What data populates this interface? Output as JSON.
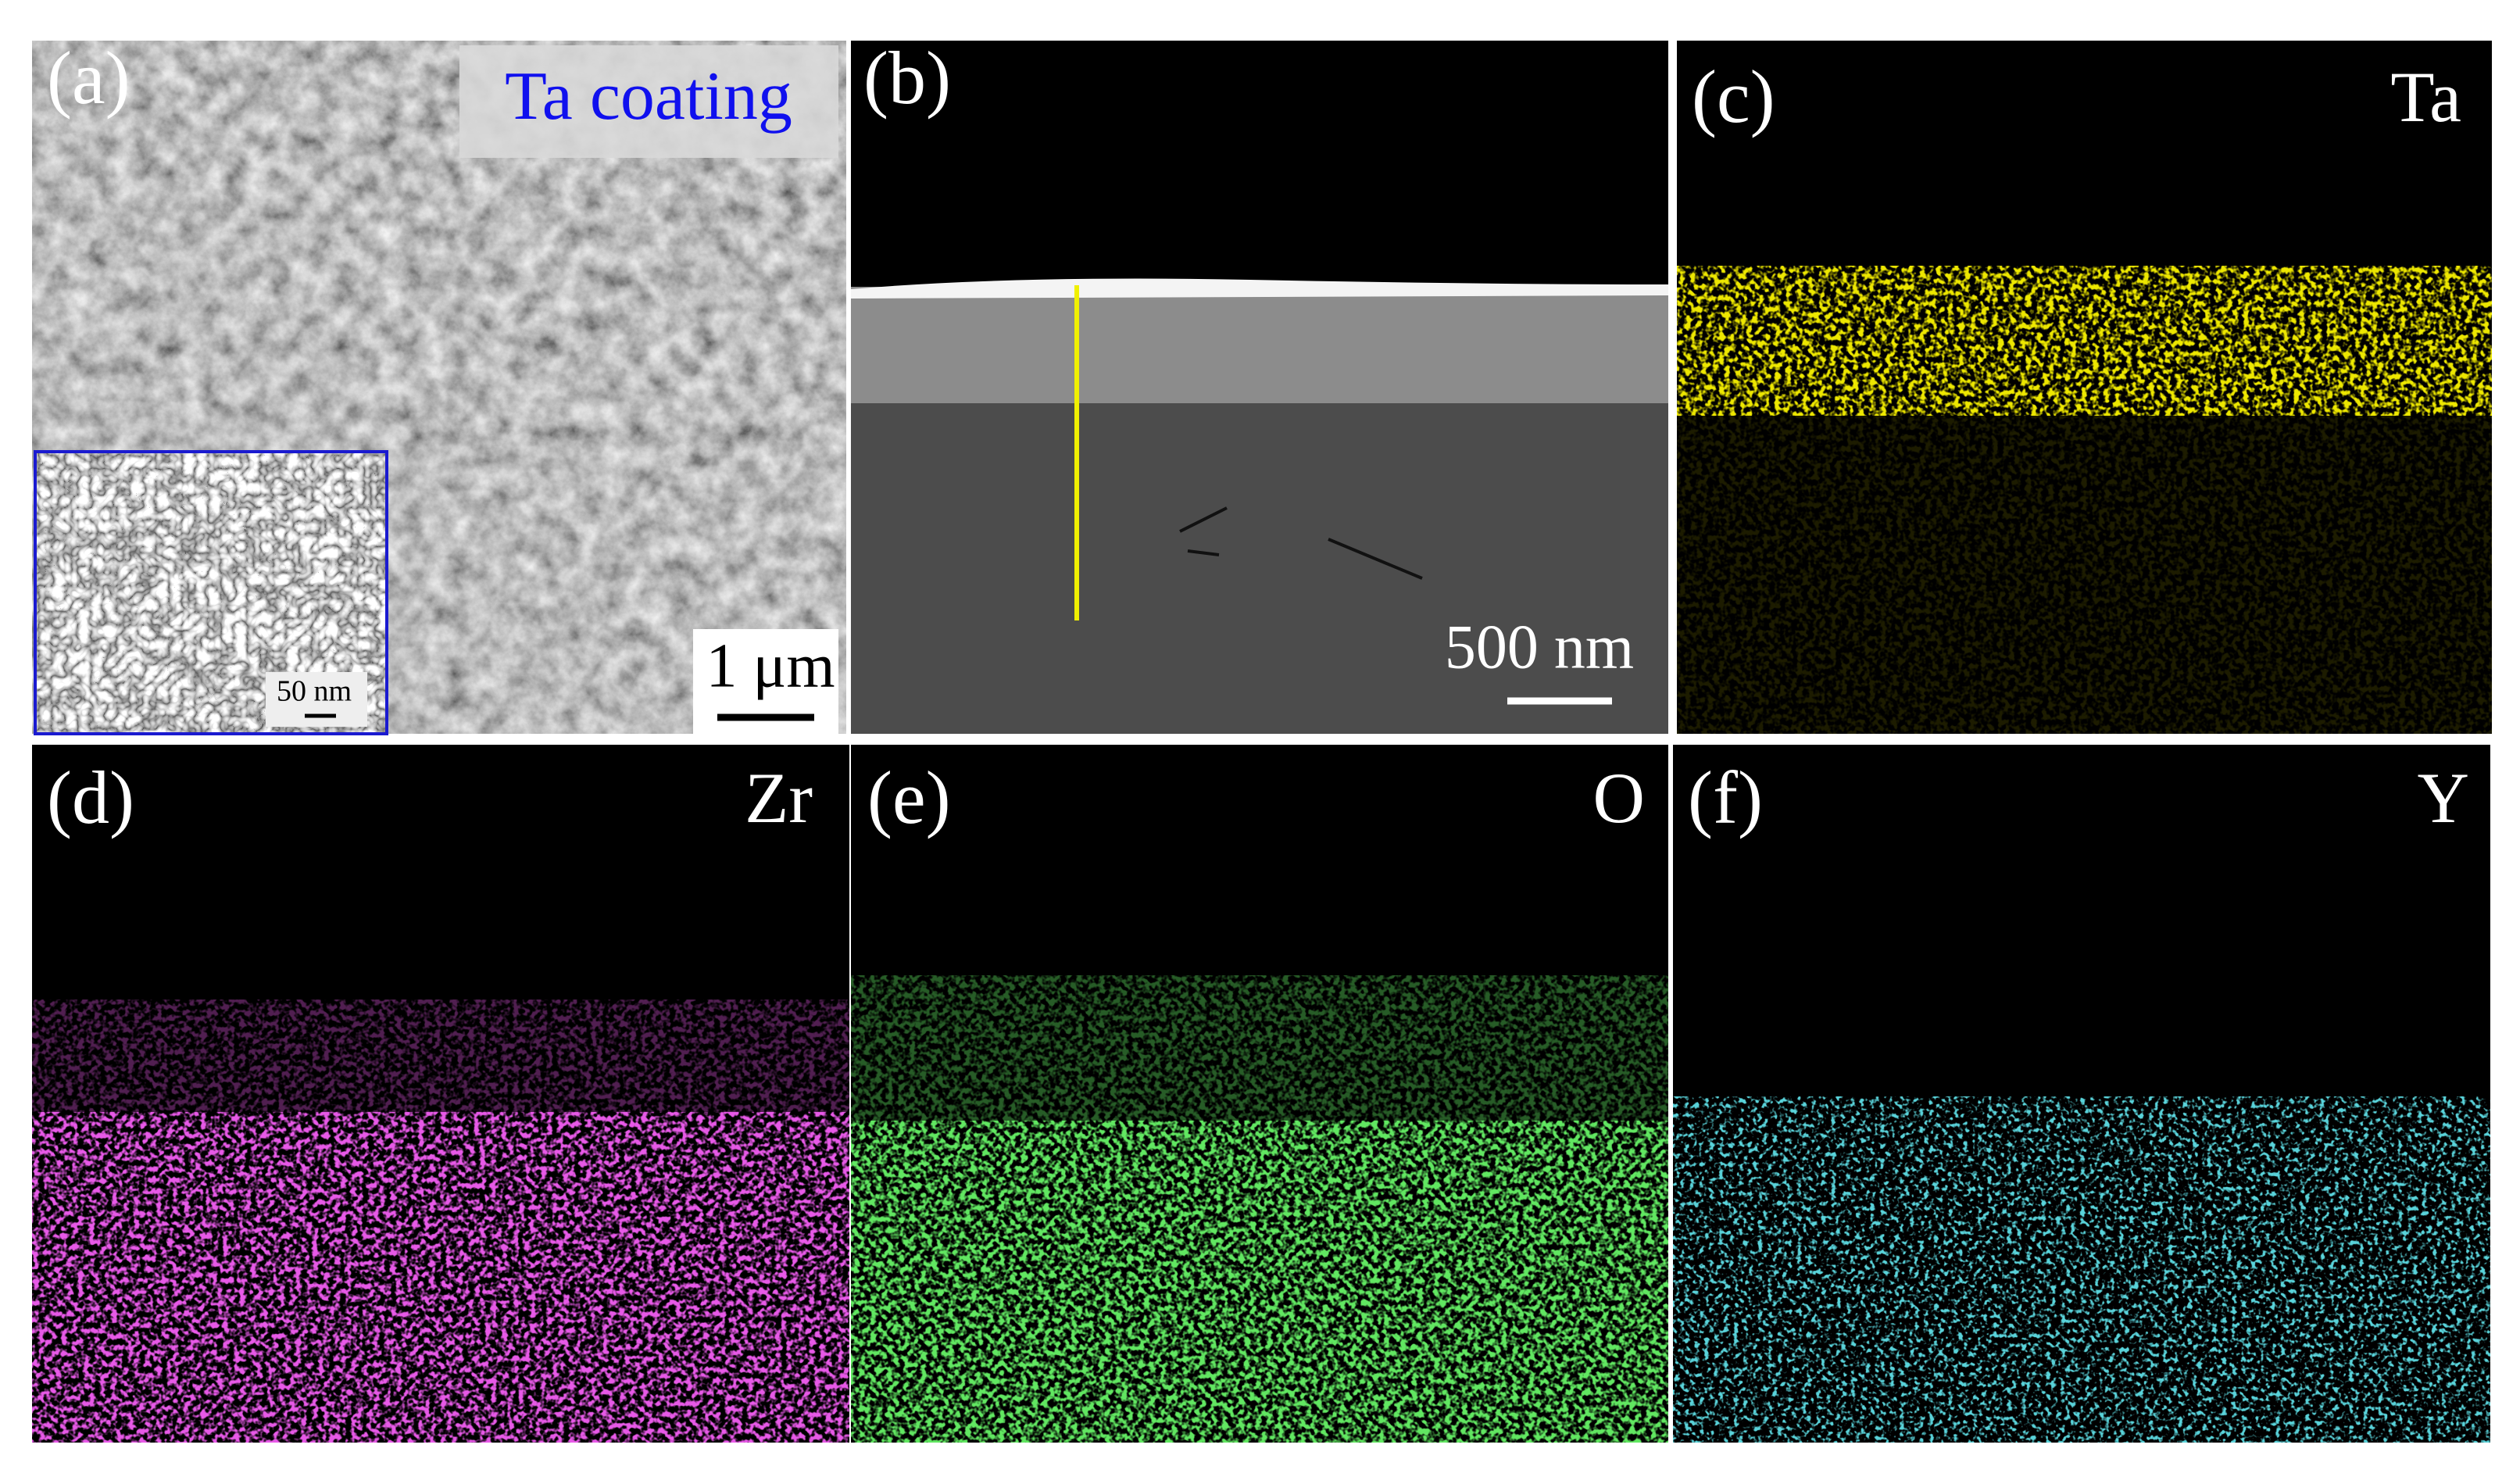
{
  "panels": [
    {
      "label": "(a)",
      "title": "Ta coating",
      "scale_bar": "1 μm",
      "inset_scale_bar": "50 nm"
    },
    {
      "label": "(b)",
      "scale_bar": "500 nm"
    },
    {
      "label": "(c)",
      "element": "Ta"
    },
    {
      "label": "(d)",
      "element": "Zr"
    },
    {
      "label": "(e)",
      "element": "O"
    },
    {
      "label": "(f)",
      "element": "Y"
    }
  ]
}
